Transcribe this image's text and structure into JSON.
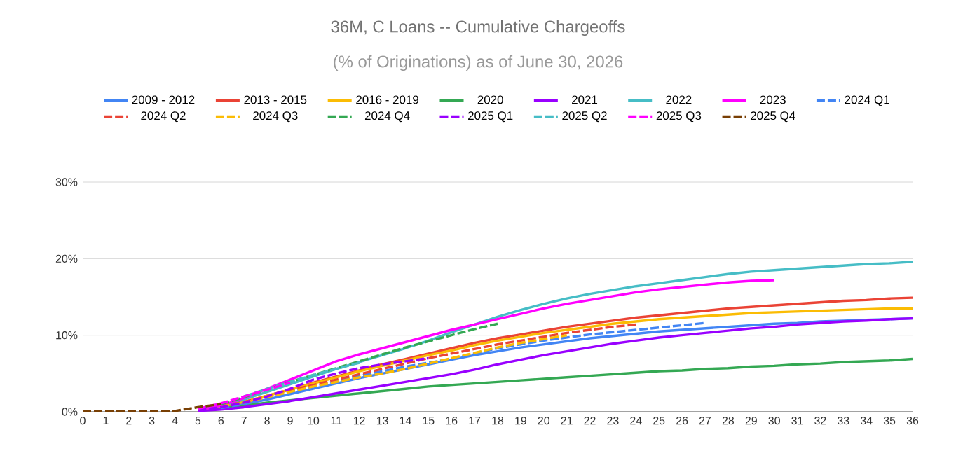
{
  "chart_data": {
    "type": "line",
    "title": "36M, C Loans -- Cumulative Chargeoffs",
    "subtitle": "(% of Originations) as of June 30, 2026",
    "x": [
      0,
      1,
      2,
      3,
      4,
      5,
      6,
      7,
      8,
      9,
      10,
      11,
      12,
      13,
      14,
      15,
      16,
      17,
      18,
      19,
      20,
      21,
      22,
      23,
      24,
      25,
      26,
      27,
      28,
      29,
      30,
      31,
      32,
      33,
      34,
      35,
      36
    ],
    "xlim": [
      0,
      36
    ],
    "xticks": [
      0,
      1,
      2,
      3,
      4,
      5,
      6,
      7,
      8,
      9,
      10,
      11,
      12,
      13,
      14,
      15,
      16,
      17,
      18,
      19,
      20,
      21,
      22,
      23,
      24,
      25,
      26,
      27,
      28,
      29,
      30,
      31,
      32,
      33,
      34,
      35,
      36
    ],
    "ylim": [
      0,
      30
    ],
    "yticks": [
      {
        "value": 0,
        "label": "0%"
      },
      {
        "value": 10,
        "label": "10%"
      },
      {
        "value": 20,
        "label": "20%"
      },
      {
        "value": 30,
        "label": "30%"
      }
    ],
    "grid": "y",
    "legend": "top",
    "marker": "none",
    "series": [
      {
        "name": "2009 - 2012",
        "color": "#4285f4",
        "line_style": "solid",
        "values": [
          null,
          null,
          null,
          null,
          null,
          0.2,
          0.5,
          1.0,
          1.6,
          2.3,
          3.0,
          3.7,
          4.4,
          5.0,
          5.6,
          6.2,
          6.8,
          7.4,
          7.9,
          8.4,
          8.8,
          9.2,
          9.6,
          9.9,
          10.2,
          10.5,
          10.7,
          10.9,
          11.1,
          11.3,
          11.5,
          11.6,
          11.8,
          11.9,
          12.0,
          12.1,
          12.2
        ]
      },
      {
        "name": "2013 - 2015",
        "color": "#ea4335",
        "line_style": "solid",
        "values": [
          null,
          null,
          null,
          null,
          null,
          0.3,
          0.7,
          1.3,
          2.1,
          2.9,
          3.8,
          4.6,
          5.4,
          6.2,
          6.9,
          7.6,
          8.3,
          9.0,
          9.6,
          10.1,
          10.6,
          11.1,
          11.5,
          11.9,
          12.3,
          12.6,
          12.9,
          13.2,
          13.5,
          13.7,
          13.9,
          14.1,
          14.3,
          14.5,
          14.6,
          14.8,
          14.9
        ]
      },
      {
        "name": "2016 - 2019",
        "color": "#fbbc04",
        "line_style": "solid",
        "values": [
          null,
          null,
          null,
          null,
          null,
          0.3,
          0.7,
          1.3,
          2.1,
          2.9,
          3.7,
          4.5,
          5.3,
          6.0,
          6.7,
          7.4,
          8.0,
          8.7,
          9.3,
          9.8,
          10.3,
          10.7,
          11.1,
          11.5,
          11.8,
          12.1,
          12.3,
          12.5,
          12.7,
          12.9,
          13.0,
          13.1,
          13.2,
          13.3,
          13.4,
          13.5,
          13.5
        ]
      },
      {
        "name": "2020",
        "color": "#34a853",
        "line_style": "solid",
        "values": [
          null,
          null,
          null,
          null,
          null,
          0.2,
          0.4,
          0.8,
          1.2,
          1.5,
          1.8,
          2.1,
          2.4,
          2.7,
          3.0,
          3.3,
          3.5,
          3.7,
          3.9,
          4.1,
          4.3,
          4.5,
          4.7,
          4.9,
          5.1,
          5.3,
          5.4,
          5.6,
          5.7,
          5.9,
          6.0,
          6.2,
          6.3,
          6.5,
          6.6,
          6.7,
          6.9
        ]
      },
      {
        "name": "2021",
        "color": "#9900ff",
        "line_style": "solid",
        "values": [
          null,
          null,
          null,
          null,
          null,
          0.1,
          0.3,
          0.6,
          1.0,
          1.4,
          1.9,
          2.4,
          2.9,
          3.4,
          3.9,
          4.4,
          4.9,
          5.5,
          6.2,
          6.8,
          7.4,
          7.9,
          8.4,
          8.9,
          9.3,
          9.7,
          10.0,
          10.3,
          10.6,
          10.9,
          11.1,
          11.4,
          11.6,
          11.8,
          11.9,
          12.1,
          12.2
        ]
      },
      {
        "name": "2022",
        "color": "#46bdc6",
        "line_style": "solid",
        "values": [
          null,
          null,
          null,
          null,
          null,
          0.3,
          0.8,
          1.6,
          2.6,
          3.6,
          4.6,
          5.6,
          6.5,
          7.4,
          8.3,
          9.3,
          10.4,
          11.4,
          12.4,
          13.3,
          14.1,
          14.8,
          15.4,
          15.9,
          16.4,
          16.8,
          17.2,
          17.6,
          18.0,
          18.3,
          18.5,
          18.7,
          18.9,
          19.1,
          19.3,
          19.4,
          19.6
        ]
      },
      {
        "name": "2023",
        "color": "#ff00ff",
        "line_style": "solid",
        "values": [
          null,
          null,
          null,
          null,
          null,
          0.2,
          0.8,
          1.8,
          3.0,
          4.2,
          5.4,
          6.6,
          7.5,
          8.3,
          9.1,
          9.9,
          10.7,
          11.4,
          12.1,
          12.8,
          13.5,
          14.1,
          14.6,
          15.1,
          15.6,
          16.0,
          16.3,
          16.6,
          16.9,
          17.1,
          17.2,
          null,
          null,
          null,
          null,
          null,
          null
        ]
      },
      {
        "name": "2024 Q1",
        "color": "#4285f4",
        "line_style": "dashed",
        "values": [
          null,
          null,
          null,
          null,
          null,
          null,
          0.5,
          1.0,
          1.7,
          2.5,
          3.3,
          4.0,
          4.7,
          5.3,
          5.9,
          6.4,
          6.9,
          7.6,
          8.3,
          8.8,
          9.3,
          9.7,
          10.1,
          10.4,
          10.7,
          11.0,
          11.3,
          11.6,
          null,
          null,
          null,
          null,
          null,
          null,
          null,
          null,
          null
        ]
      },
      {
        "name": "2024 Q2",
        "color": "#ea4335",
        "line_style": "dashed",
        "values": [
          null,
          null,
          null,
          null,
          null,
          null,
          0.7,
          1.3,
          2.0,
          2.8,
          3.5,
          4.2,
          4.9,
          5.6,
          6.3,
          7.0,
          7.6,
          8.2,
          8.8,
          9.3,
          9.8,
          10.3,
          10.7,
          11.1,
          11.4,
          null,
          null,
          null,
          null,
          null,
          null,
          null,
          null,
          null,
          null,
          null,
          null
        ]
      },
      {
        "name": "2024 Q3",
        "color": "#fbbc04",
        "line_style": "dashed",
        "values": [
          null,
          null,
          null,
          null,
          null,
          null,
          0.7,
          1.2,
          1.9,
          2.6,
          3.3,
          3.9,
          4.5,
          5.0,
          5.6,
          6.3,
          7.0,
          7.7,
          8.4,
          9.0,
          9.5,
          10.0,
          null,
          null,
          null,
          null,
          null,
          null,
          null,
          null,
          null,
          null,
          null,
          null,
          null,
          null,
          null
        ]
      },
      {
        "name": "2024 Q4",
        "color": "#34a853",
        "line_style": "dashed",
        "values": [
          null,
          null,
          null,
          null,
          null,
          null,
          1.0,
          1.9,
          2.9,
          3.9,
          4.8,
          5.7,
          6.6,
          7.5,
          8.4,
          9.2,
          10.0,
          10.8,
          11.5,
          null,
          null,
          null,
          null,
          null,
          null,
          null,
          null,
          null,
          null,
          null,
          null,
          null,
          null,
          null,
          null,
          null,
          null
        ]
      },
      {
        "name": "2025 Q1",
        "color": "#9900ff",
        "line_style": "dashed",
        "values": [
          null,
          null,
          null,
          null,
          null,
          0.2,
          0.6,
          1.2,
          2.0,
          3.0,
          4.2,
          5.0,
          5.7,
          6.2,
          6.6,
          7.0,
          null,
          null,
          null,
          null,
          null,
          null,
          null,
          null,
          null,
          null,
          null,
          null,
          null,
          null,
          null,
          null,
          null,
          null,
          null,
          null,
          null
        ]
      },
      {
        "name": "2025 Q2",
        "color": "#46bdc6",
        "line_style": "dashed",
        "values": [
          null,
          null,
          null,
          null,
          null,
          null,
          null,
          2.0,
          3.0,
          3.9,
          4.8,
          5.6,
          6.4,
          null,
          null,
          null,
          null,
          null,
          null,
          null,
          null,
          null,
          null,
          null,
          null,
          null,
          null,
          null,
          null,
          null,
          null,
          null,
          null,
          null,
          null,
          null,
          null
        ]
      },
      {
        "name": "2025 Q3",
        "color": "#ff00ff",
        "line_style": "dashed",
        "values": [
          null,
          null,
          null,
          null,
          null,
          0.4,
          1.1,
          2.0,
          2.9,
          3.8,
          null,
          null,
          null,
          null,
          null,
          null,
          null,
          null,
          null,
          null,
          null,
          null,
          null,
          null,
          null,
          null,
          null,
          null,
          null,
          null,
          null,
          null,
          null,
          null,
          null,
          null,
          null
        ]
      },
      {
        "name": "2025 Q4",
        "color": "#783f04",
        "line_style": "dashed",
        "values": [
          0.1,
          0.1,
          0.1,
          0.1,
          0.1,
          0.6,
          1.0,
          null,
          null,
          null,
          null,
          null,
          null,
          null,
          null,
          null,
          null,
          null,
          null,
          null,
          null,
          null,
          null,
          null,
          null,
          null,
          null,
          null,
          null,
          null,
          null,
          null,
          null,
          null,
          null,
          null,
          null
        ]
      }
    ]
  }
}
